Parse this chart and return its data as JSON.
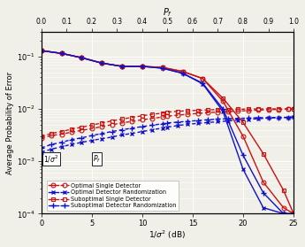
{
  "bg_color": "#f0efe8",
  "grid_color": "#d8d8d8",
  "xlim_snr": [
    0,
    25
  ],
  "xlim_pf": [
    0,
    1
  ],
  "ylim": [
    0.0001,
    0.3
  ],
  "snr_pts": [
    0,
    2,
    4,
    6,
    8,
    10,
    12,
    14,
    16,
    18,
    20,
    22,
    24,
    25
  ],
  "pf_pts": [
    0.0,
    0.04,
    0.08,
    0.12,
    0.16,
    0.2,
    0.24,
    0.28,
    0.32,
    0.36,
    0.4,
    0.44,
    0.48,
    0.5
  ],
  "os_solid": [
    0.13,
    0.115,
    0.095,
    0.075,
    0.065,
    0.065,
    0.062,
    0.052,
    0.038,
    0.014,
    0.003,
    0.0004,
    0.00013,
    0.0001
  ],
  "or_solid": [
    0.13,
    0.115,
    0.095,
    0.075,
    0.065,
    0.065,
    0.06,
    0.048,
    0.03,
    0.009,
    0.0007,
    0.00013,
    0.0001,
    0.0001
  ],
  "ss_solid": [
    0.13,
    0.115,
    0.095,
    0.075,
    0.065,
    0.065,
    0.062,
    0.052,
    0.038,
    0.016,
    0.0055,
    0.0014,
    0.00028,
    0.0001
  ],
  "sr_solid": [
    0.13,
    0.115,
    0.095,
    0.075,
    0.065,
    0.065,
    0.06,
    0.048,
    0.031,
    0.01,
    0.0013,
    0.00025,
    0.0001,
    0.0001
  ],
  "pf_pts_d": [
    0.0,
    0.04,
    0.08,
    0.12,
    0.16,
    0.2,
    0.24,
    0.28,
    0.32,
    0.36,
    0.4,
    0.44,
    0.48,
    0.5,
    0.54,
    0.58,
    0.62,
    0.66,
    0.7,
    0.74,
    0.78,
    0.82,
    0.86,
    0.9,
    0.94,
    0.98,
    1.0
  ],
  "os_dashed": [
    0.0028,
    0.0031,
    0.0033,
    0.0036,
    0.0039,
    0.0042,
    0.0046,
    0.005,
    0.0054,
    0.0058,
    0.0062,
    0.0066,
    0.007,
    0.0073,
    0.0076,
    0.0079,
    0.0082,
    0.0085,
    0.0087,
    0.0089,
    0.0091,
    0.0093,
    0.0095,
    0.0097,
    0.0098,
    0.0099,
    0.01
  ],
  "or_dashed": [
    0.0015,
    0.0017,
    0.0019,
    0.0021,
    0.0023,
    0.0025,
    0.0027,
    0.0029,
    0.0032,
    0.0034,
    0.0037,
    0.004,
    0.0043,
    0.0045,
    0.0048,
    0.0051,
    0.0053,
    0.0055,
    0.0057,
    0.0059,
    0.0061,
    0.0063,
    0.0065,
    0.0067,
    0.0068,
    0.0069,
    0.007
  ],
  "ss_dashed": [
    0.003,
    0.0034,
    0.0037,
    0.0041,
    0.0045,
    0.0049,
    0.0054,
    0.0059,
    0.0064,
    0.0069,
    0.0074,
    0.0079,
    0.0083,
    0.0087,
    0.009,
    0.0092,
    0.0094,
    0.0096,
    0.0097,
    0.0098,
    0.0099,
    0.0099,
    0.01,
    0.01,
    0.01,
    0.01,
    0.01
  ],
  "sr_dashed": [
    0.0018,
    0.0021,
    0.0023,
    0.0026,
    0.0028,
    0.0031,
    0.0034,
    0.0037,
    0.004,
    0.0043,
    0.0046,
    0.0049,
    0.0052,
    0.0054,
    0.0056,
    0.0058,
    0.006,
    0.0062,
    0.0064,
    0.0065,
    0.0066,
    0.0067,
    0.0068,
    0.0068,
    0.0069,
    0.0069,
    0.007
  ],
  "red": "#cc1111",
  "blue": "#1111cc",
  "ms": 3.5,
  "lw": 1.0,
  "legend_names": [
    "Optimal Single Detector",
    "Optimal Detector Randomization",
    "Suboptimal Single Detector",
    "Suboptimal Detector Randomization"
  ]
}
